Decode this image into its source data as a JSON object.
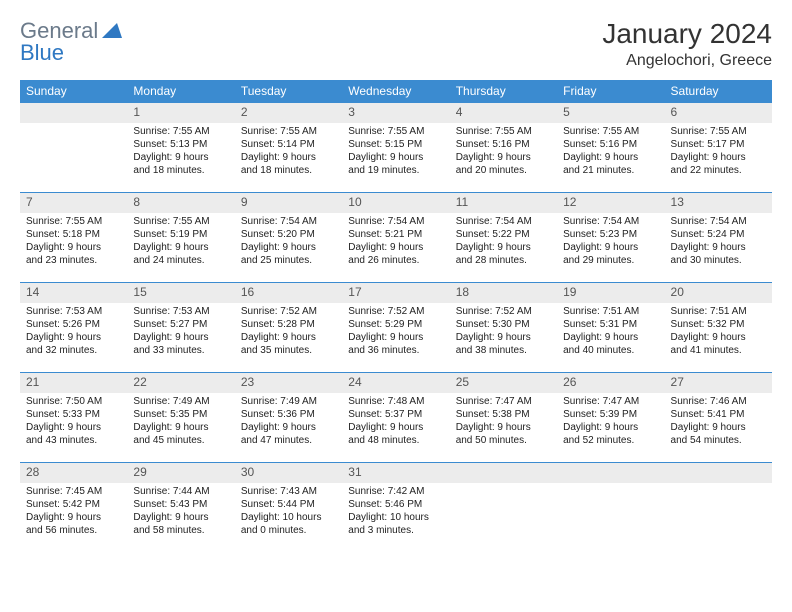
{
  "logo": {
    "general": "General",
    "blue": "Blue"
  },
  "title": "January 2024",
  "location": "Angelochori, Greece",
  "colors": {
    "header_bg": "#3b8bd0",
    "header_text": "#ffffff",
    "daynum_bg": "#ececec",
    "border": "#3b8bd0",
    "text": "#222222",
    "logo_gray": "#6b7a8a",
    "logo_blue": "#2f78c2"
  },
  "weekdays": [
    "Sunday",
    "Monday",
    "Tuesday",
    "Wednesday",
    "Thursday",
    "Friday",
    "Saturday"
  ],
  "weeks": [
    {
      "nums": [
        "",
        "1",
        "2",
        "3",
        "4",
        "5",
        "6"
      ],
      "cells": [
        {},
        {
          "sr": "Sunrise: 7:55 AM",
          "ss": "Sunset: 5:13 PM",
          "d1": "Daylight: 9 hours",
          "d2": "and 18 minutes."
        },
        {
          "sr": "Sunrise: 7:55 AM",
          "ss": "Sunset: 5:14 PM",
          "d1": "Daylight: 9 hours",
          "d2": "and 18 minutes."
        },
        {
          "sr": "Sunrise: 7:55 AM",
          "ss": "Sunset: 5:15 PM",
          "d1": "Daylight: 9 hours",
          "d2": "and 19 minutes."
        },
        {
          "sr": "Sunrise: 7:55 AM",
          "ss": "Sunset: 5:16 PM",
          "d1": "Daylight: 9 hours",
          "d2": "and 20 minutes."
        },
        {
          "sr": "Sunrise: 7:55 AM",
          "ss": "Sunset: 5:16 PM",
          "d1": "Daylight: 9 hours",
          "d2": "and 21 minutes."
        },
        {
          "sr": "Sunrise: 7:55 AM",
          "ss": "Sunset: 5:17 PM",
          "d1": "Daylight: 9 hours",
          "d2": "and 22 minutes."
        }
      ]
    },
    {
      "nums": [
        "7",
        "8",
        "9",
        "10",
        "11",
        "12",
        "13"
      ],
      "cells": [
        {
          "sr": "Sunrise: 7:55 AM",
          "ss": "Sunset: 5:18 PM",
          "d1": "Daylight: 9 hours",
          "d2": "and 23 minutes."
        },
        {
          "sr": "Sunrise: 7:55 AM",
          "ss": "Sunset: 5:19 PM",
          "d1": "Daylight: 9 hours",
          "d2": "and 24 minutes."
        },
        {
          "sr": "Sunrise: 7:54 AM",
          "ss": "Sunset: 5:20 PM",
          "d1": "Daylight: 9 hours",
          "d2": "and 25 minutes."
        },
        {
          "sr": "Sunrise: 7:54 AM",
          "ss": "Sunset: 5:21 PM",
          "d1": "Daylight: 9 hours",
          "d2": "and 26 minutes."
        },
        {
          "sr": "Sunrise: 7:54 AM",
          "ss": "Sunset: 5:22 PM",
          "d1": "Daylight: 9 hours",
          "d2": "and 28 minutes."
        },
        {
          "sr": "Sunrise: 7:54 AM",
          "ss": "Sunset: 5:23 PM",
          "d1": "Daylight: 9 hours",
          "d2": "and 29 minutes."
        },
        {
          "sr": "Sunrise: 7:54 AM",
          "ss": "Sunset: 5:24 PM",
          "d1": "Daylight: 9 hours",
          "d2": "and 30 minutes."
        }
      ]
    },
    {
      "nums": [
        "14",
        "15",
        "16",
        "17",
        "18",
        "19",
        "20"
      ],
      "cells": [
        {
          "sr": "Sunrise: 7:53 AM",
          "ss": "Sunset: 5:26 PM",
          "d1": "Daylight: 9 hours",
          "d2": "and 32 minutes."
        },
        {
          "sr": "Sunrise: 7:53 AM",
          "ss": "Sunset: 5:27 PM",
          "d1": "Daylight: 9 hours",
          "d2": "and 33 minutes."
        },
        {
          "sr": "Sunrise: 7:52 AM",
          "ss": "Sunset: 5:28 PM",
          "d1": "Daylight: 9 hours",
          "d2": "and 35 minutes."
        },
        {
          "sr": "Sunrise: 7:52 AM",
          "ss": "Sunset: 5:29 PM",
          "d1": "Daylight: 9 hours",
          "d2": "and 36 minutes."
        },
        {
          "sr": "Sunrise: 7:52 AM",
          "ss": "Sunset: 5:30 PM",
          "d1": "Daylight: 9 hours",
          "d2": "and 38 minutes."
        },
        {
          "sr": "Sunrise: 7:51 AM",
          "ss": "Sunset: 5:31 PM",
          "d1": "Daylight: 9 hours",
          "d2": "and 40 minutes."
        },
        {
          "sr": "Sunrise: 7:51 AM",
          "ss": "Sunset: 5:32 PM",
          "d1": "Daylight: 9 hours",
          "d2": "and 41 minutes."
        }
      ]
    },
    {
      "nums": [
        "21",
        "22",
        "23",
        "24",
        "25",
        "26",
        "27"
      ],
      "cells": [
        {
          "sr": "Sunrise: 7:50 AM",
          "ss": "Sunset: 5:33 PM",
          "d1": "Daylight: 9 hours",
          "d2": "and 43 minutes."
        },
        {
          "sr": "Sunrise: 7:49 AM",
          "ss": "Sunset: 5:35 PM",
          "d1": "Daylight: 9 hours",
          "d2": "and 45 minutes."
        },
        {
          "sr": "Sunrise: 7:49 AM",
          "ss": "Sunset: 5:36 PM",
          "d1": "Daylight: 9 hours",
          "d2": "and 47 minutes."
        },
        {
          "sr": "Sunrise: 7:48 AM",
          "ss": "Sunset: 5:37 PM",
          "d1": "Daylight: 9 hours",
          "d2": "and 48 minutes."
        },
        {
          "sr": "Sunrise: 7:47 AM",
          "ss": "Sunset: 5:38 PM",
          "d1": "Daylight: 9 hours",
          "d2": "and 50 minutes."
        },
        {
          "sr": "Sunrise: 7:47 AM",
          "ss": "Sunset: 5:39 PM",
          "d1": "Daylight: 9 hours",
          "d2": "and 52 minutes."
        },
        {
          "sr": "Sunrise: 7:46 AM",
          "ss": "Sunset: 5:41 PM",
          "d1": "Daylight: 9 hours",
          "d2": "and 54 minutes."
        }
      ]
    },
    {
      "nums": [
        "28",
        "29",
        "30",
        "31",
        "",
        "",
        ""
      ],
      "cells": [
        {
          "sr": "Sunrise: 7:45 AM",
          "ss": "Sunset: 5:42 PM",
          "d1": "Daylight: 9 hours",
          "d2": "and 56 minutes."
        },
        {
          "sr": "Sunrise: 7:44 AM",
          "ss": "Sunset: 5:43 PM",
          "d1": "Daylight: 9 hours",
          "d2": "and 58 minutes."
        },
        {
          "sr": "Sunrise: 7:43 AM",
          "ss": "Sunset: 5:44 PM",
          "d1": "Daylight: 10 hours",
          "d2": "and 0 minutes."
        },
        {
          "sr": "Sunrise: 7:42 AM",
          "ss": "Sunset: 5:46 PM",
          "d1": "Daylight: 10 hours",
          "d2": "and 3 minutes."
        },
        {},
        {},
        {}
      ]
    }
  ]
}
